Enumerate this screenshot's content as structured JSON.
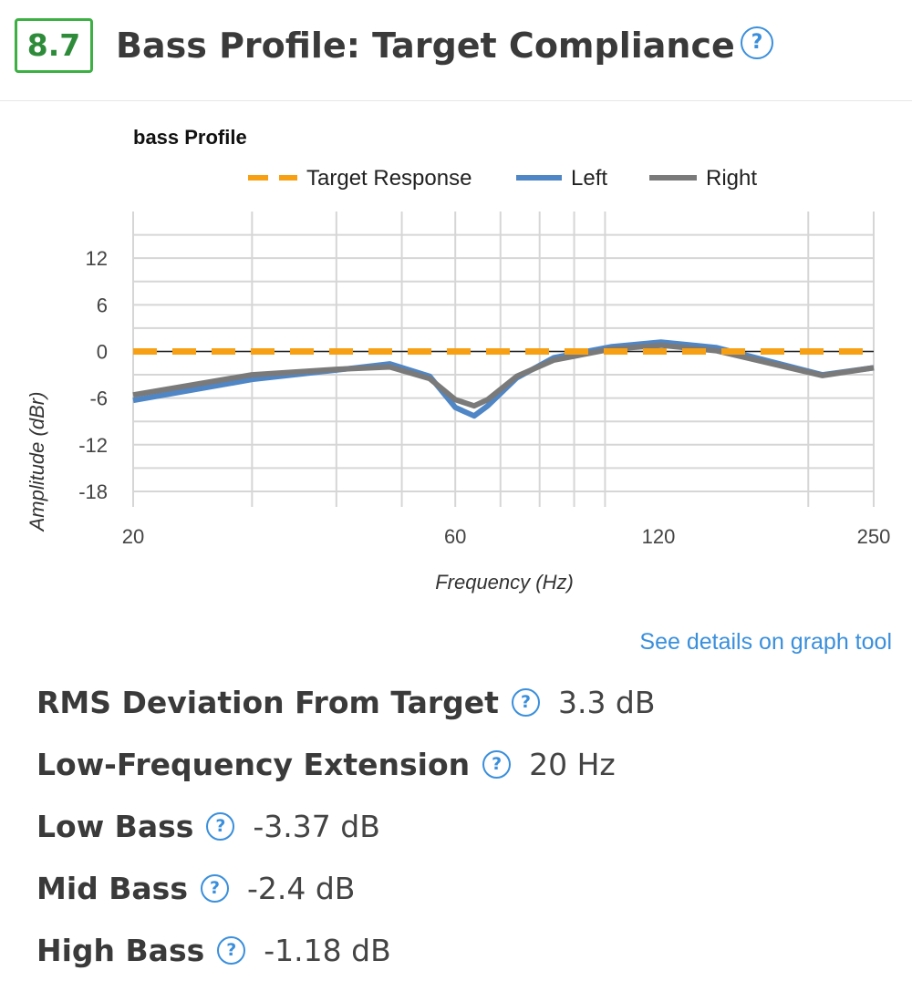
{
  "header": {
    "score": "8.7",
    "title": "Bass Profile: Target Compliance",
    "help_glyph": "?",
    "help_icon": "question-circle-icon"
  },
  "chart_data": {
    "type": "line",
    "title": "bass Profile",
    "xlabel": "Frequency (Hz)",
    "ylabel": "Amplitude (dBr)",
    "x_scale": "log",
    "xlim": [
      20,
      250
    ],
    "ylim": [
      -20,
      18
    ],
    "x_ticks": [
      20,
      60,
      120,
      250
    ],
    "x_tick_labels": [
      "20",
      "60",
      "120",
      "250"
    ],
    "x_gridlines": [
      20,
      30,
      40,
      50,
      60,
      70,
      80,
      90,
      100,
      200,
      250
    ],
    "y_ticks": [
      12,
      6,
      0,
      -6,
      -12,
      -18
    ],
    "y_tick_labels": [
      "12",
      "6",
      "0",
      "-6",
      "-12",
      "-18"
    ],
    "y_gridlines": [
      15,
      12,
      9,
      6,
      3,
      0,
      -3,
      -6,
      -9,
      -12,
      -15,
      -18
    ],
    "grid": true,
    "legend": "top",
    "series": [
      {
        "name": "Target Response",
        "color": "#f7a014",
        "style": "dashed",
        "x": [
          20,
          250
        ],
        "y": [
          0,
          0
        ]
      },
      {
        "name": "Left",
        "color": "#4f86c6",
        "style": "solid",
        "x": [
          20,
          30,
          40,
          48,
          55,
          60,
          64,
          67,
          74,
          84,
          102,
          121,
          146,
          210,
          250
        ],
        "y": [
          -6.3,
          -3.6,
          -2.4,
          -1.6,
          -3.2,
          -7.2,
          -8.3,
          -7.0,
          -3.4,
          -0.8,
          0.6,
          1.2,
          0.5,
          -3.0,
          -2.1
        ]
      },
      {
        "name": "Right",
        "color": "#7a7a7a",
        "style": "solid",
        "x": [
          20,
          30,
          40,
          48,
          55,
          60,
          64,
          67,
          74,
          84,
          102,
          121,
          146,
          210,
          250
        ],
        "y": [
          -5.6,
          -3.0,
          -2.3,
          -2.0,
          -3.5,
          -6.2,
          -7.0,
          -6.2,
          -3.2,
          -1.1,
          0.3,
          0.8,
          0.1,
          -3.1,
          -2.1
        ]
      }
    ]
  },
  "details_link": "See details on graph tool",
  "stats": [
    {
      "label": "RMS Deviation From Target",
      "value": "3.3 dB"
    },
    {
      "label": "Low-Frequency Extension",
      "value": "20 Hz"
    },
    {
      "label": "Low Bass",
      "value": "-3.37 dB"
    },
    {
      "label": "Mid Bass",
      "value": "-2.4 dB"
    },
    {
      "label": "High Bass",
      "value": "-1.18 dB"
    }
  ]
}
